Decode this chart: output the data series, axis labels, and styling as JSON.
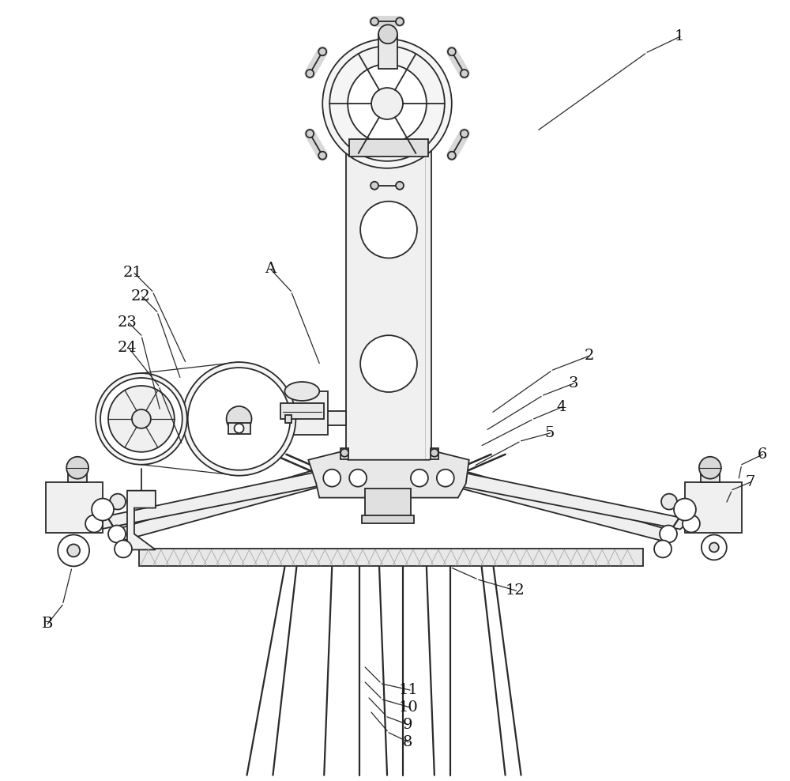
{
  "bg": "#ffffff",
  "lc": "#2a2a2a",
  "lw": 1.3,
  "fw": 10.0,
  "fh": 9.88,
  "dpi": 100
}
